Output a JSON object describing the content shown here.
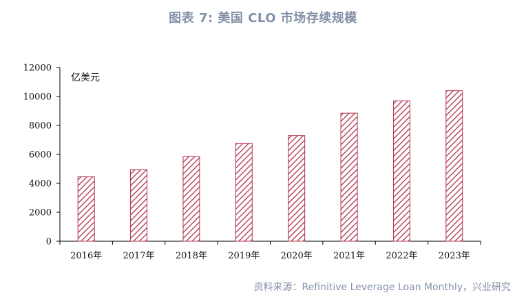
{
  "title": "图表 7:  美国 CLO 市场存续规模",
  "source": "资料来源：Refinitive Leverage Loan Monthly，兴业研究",
  "colors": {
    "bar_stroke": "#b03048",
    "hatch": "#b03048",
    "title": "#8391a8"
  },
  "chart_data": {
    "type": "bar",
    "categories": [
      "2016年",
      "2017年",
      "2018年",
      "2019年",
      "2020年",
      "2021年",
      "2022年",
      "2023年"
    ],
    "values": [
      4450,
      4950,
      5850,
      6750,
      7300,
      8850,
      9700,
      10400
    ],
    "ylabel": "亿美元",
    "ylim": [
      0,
      12000
    ],
    "yticks": [
      "0",
      "2000",
      "4000",
      "6000",
      "8000",
      "10000",
      "12000"
    ],
    "grid": false,
    "pattern": "diagonal-hatch"
  }
}
